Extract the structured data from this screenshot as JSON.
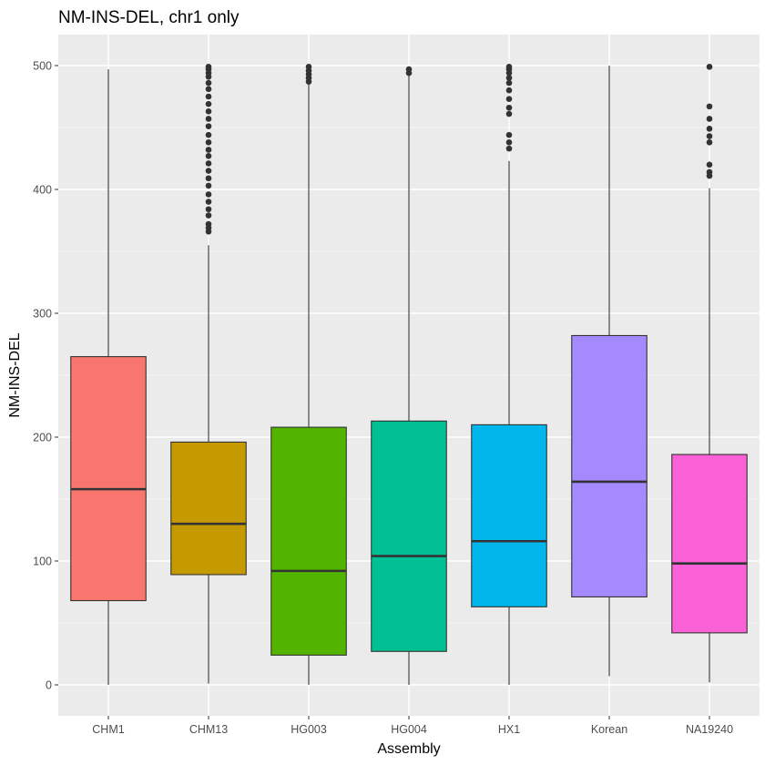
{
  "chart_data": {
    "type": "box",
    "title": "NM-INS-DEL, chr1 only",
    "xlabel": "Assembly",
    "ylabel": "NM-INS-DEL",
    "ylim": [
      -25,
      525
    ],
    "y_ticks": [
      0,
      100,
      200,
      300,
      400,
      500
    ],
    "y_tick_labels": [
      "0",
      "100",
      "200",
      "300",
      "400",
      "500"
    ],
    "grid": true,
    "legend": "none",
    "categories": [
      "CHM1",
      "CHM13",
      "HG003",
      "HG004",
      "HX1",
      "Korean",
      "NA19240"
    ],
    "boxes": [
      {
        "name": "CHM1",
        "color": "#F8766D",
        "whisker_low": 0,
        "q1": 68,
        "median": 158,
        "q3": 265,
        "whisker_high": 497,
        "outliers": []
      },
      {
        "name": "CHM13",
        "color": "#C49A00",
        "whisker_low": 1,
        "q1": 89,
        "median": 130,
        "q3": 196,
        "whisker_high": 355,
        "outliers": [
          366,
          369,
          372,
          379,
          384,
          390,
          396,
          403,
          409,
          415,
          421,
          427,
          432,
          438,
          444,
          451,
          457,
          463,
          469,
          475,
          481,
          486,
          491,
          494,
          497,
          499
        ]
      },
      {
        "name": "HG003",
        "color": "#53B400",
        "whisker_low": 0,
        "q1": 24,
        "median": 92,
        "q3": 208,
        "whisker_high": 485,
        "outliers": [
          487,
          490,
          493,
          496,
          499
        ]
      },
      {
        "name": "HG004",
        "color": "#00C094",
        "whisker_low": 0,
        "q1": 27,
        "median": 104,
        "q3": 213,
        "whisker_high": 492,
        "outliers": [
          494,
          497
        ]
      },
      {
        "name": "HX1",
        "color": "#00B6EB",
        "whisker_low": 0,
        "q1": 63,
        "median": 116,
        "q3": 210,
        "whisker_high": 423,
        "outliers": [
          433,
          438,
          444,
          461,
          466,
          473,
          480,
          486,
          490,
          494,
          497,
          499
        ]
      },
      {
        "name": "Korean",
        "color": "#A58AFF",
        "whisker_low": 7,
        "q1": 71,
        "median": 164,
        "q3": 282,
        "whisker_high": 500,
        "outliers": []
      },
      {
        "name": "NA19240",
        "color": "#FB61D7",
        "whisker_low": 2,
        "q1": 42,
        "median": 98,
        "q3": 186,
        "whisker_high": 401,
        "outliers": [
          411,
          414,
          420,
          438,
          443,
          449,
          457,
          467,
          499
        ]
      }
    ]
  }
}
